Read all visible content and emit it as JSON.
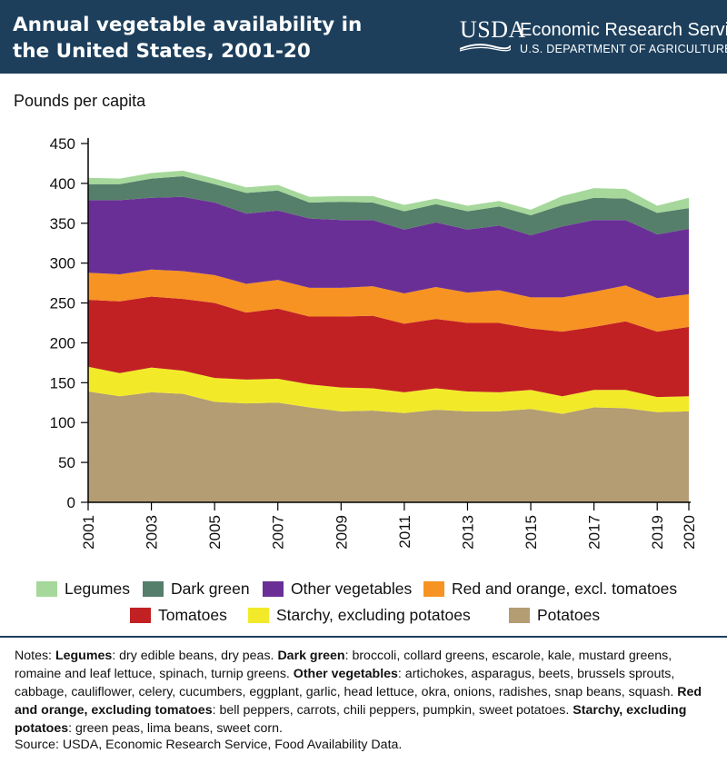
{
  "header": {
    "title": "Annual vegetable availability in the United States, 2001-20",
    "logo_text": "USDA",
    "org_name": "Economic Research Service",
    "dept_name": "U.S. DEPARTMENT OF AGRICULTURE"
  },
  "colors": {
    "header_bg": "#1d3f5c",
    "Legumes": "#a5d89a",
    "Dark green": "#557f6a",
    "Other vegetables": "#6a2f96",
    "Red and orange, excl. tomatoes": "#f79322",
    "Tomatoes": "#c22124",
    "Starchy, excluding potatoes": "#f2ea29",
    "Potatoes": "#b49c73"
  },
  "chart_data": {
    "type": "area",
    "stacked": true,
    "ylabel": "Pounds per capita",
    "xlabel": "",
    "ylim": [
      0,
      450
    ],
    "yticks": [
      0,
      50,
      100,
      150,
      200,
      250,
      300,
      350,
      400,
      450
    ],
    "x": [
      2001,
      2002,
      2003,
      2004,
      2005,
      2006,
      2007,
      2008,
      2009,
      2010,
      2011,
      2012,
      2013,
      2014,
      2015,
      2016,
      2017,
      2018,
      2019,
      2020
    ],
    "xticks": [
      "2001",
      "2003",
      "2005",
      "2007",
      "2009",
      "2011",
      "2013",
      "2015",
      "2017",
      "2019",
      "2020"
    ],
    "grid": false,
    "legend_position": "bottom",
    "series": [
      {
        "name": "Potatoes",
        "values": [
          139,
          133,
          138,
          136,
          126,
          124,
          125,
          119,
          114,
          115,
          112,
          116,
          114,
          114,
          117,
          111,
          119,
          118,
          113,
          114
        ]
      },
      {
        "name": "Starchy, excluding potatoes",
        "values": [
          31,
          29,
          31,
          29,
          30,
          30,
          30,
          29,
          30,
          28,
          26,
          27,
          25,
          24,
          24,
          22,
          22,
          23,
          19,
          19
        ]
      },
      {
        "name": "Tomatoes",
        "values": [
          84,
          90,
          89,
          90,
          94,
          84,
          88,
          85,
          89,
          91,
          86,
          87,
          86,
          87,
          77,
          81,
          79,
          86,
          82,
          87
        ]
      },
      {
        "name": "Red and orange, excl. tomatoes",
        "values": [
          34,
          34,
          34,
          35,
          35,
          36,
          36,
          36,
          36,
          37,
          38,
          40,
          38,
          41,
          39,
          43,
          44,
          45,
          42,
          41
        ]
      },
      {
        "name": "Other vegetables",
        "values": [
          91,
          93,
          90,
          93,
          91,
          88,
          87,
          87,
          85,
          83,
          80,
          81,
          79,
          81,
          78,
          89,
          90,
          82,
          80,
          82
        ]
      },
      {
        "name": "Dark green",
        "values": [
          20,
          20,
          24,
          26,
          23,
          26,
          25,
          20,
          23,
          22,
          23,
          23,
          23,
          24,
          25,
          27,
          28,
          27,
          27,
          26
        ]
      },
      {
        "name": "Legumes",
        "values": [
          8,
          7,
          7,
          7,
          7,
          7,
          7,
          7,
          7,
          8,
          8,
          7,
          7,
          7,
          7,
          11,
          12,
          12,
          9,
          13
        ]
      }
    ]
  },
  "legend": {
    "row1": [
      "Legumes",
      "Dark green",
      "Other vegetables",
      "Red and orange, excl. tomatoes"
    ],
    "row2": [
      "Tomatoes",
      "Starchy, excluding potatoes",
      "Potatoes"
    ]
  },
  "notes": {
    "prefix": "Notes: ",
    "items": [
      {
        "term": "Legumes",
        "desc": ": dry edible beans, dry peas. "
      },
      {
        "term": "Dark green",
        "desc": ": broccoli, collard greens, escarole, kale, mustard greens, romaine and leaf lettuce, spinach, turnip greens. "
      },
      {
        "term": "Other vegetables",
        "desc": ": artichokes, asparagus, beets, brussels sprouts, cabbage, cauliflower, celery, cucumbers, eggplant, garlic, head lettuce, okra, onions, radishes, snap beans, squash. "
      },
      {
        "term": "Red and orange, excluding tomatoes",
        "desc": ": bell peppers, carrots, chili peppers, pumpkin, sweet potatoes. "
      },
      {
        "term": "Starchy, excluding potatoes",
        "desc": ": green peas, lima beans, sweet corn."
      }
    ],
    "source": "Source: USDA, Economic Research Service, Food Availability Data."
  }
}
